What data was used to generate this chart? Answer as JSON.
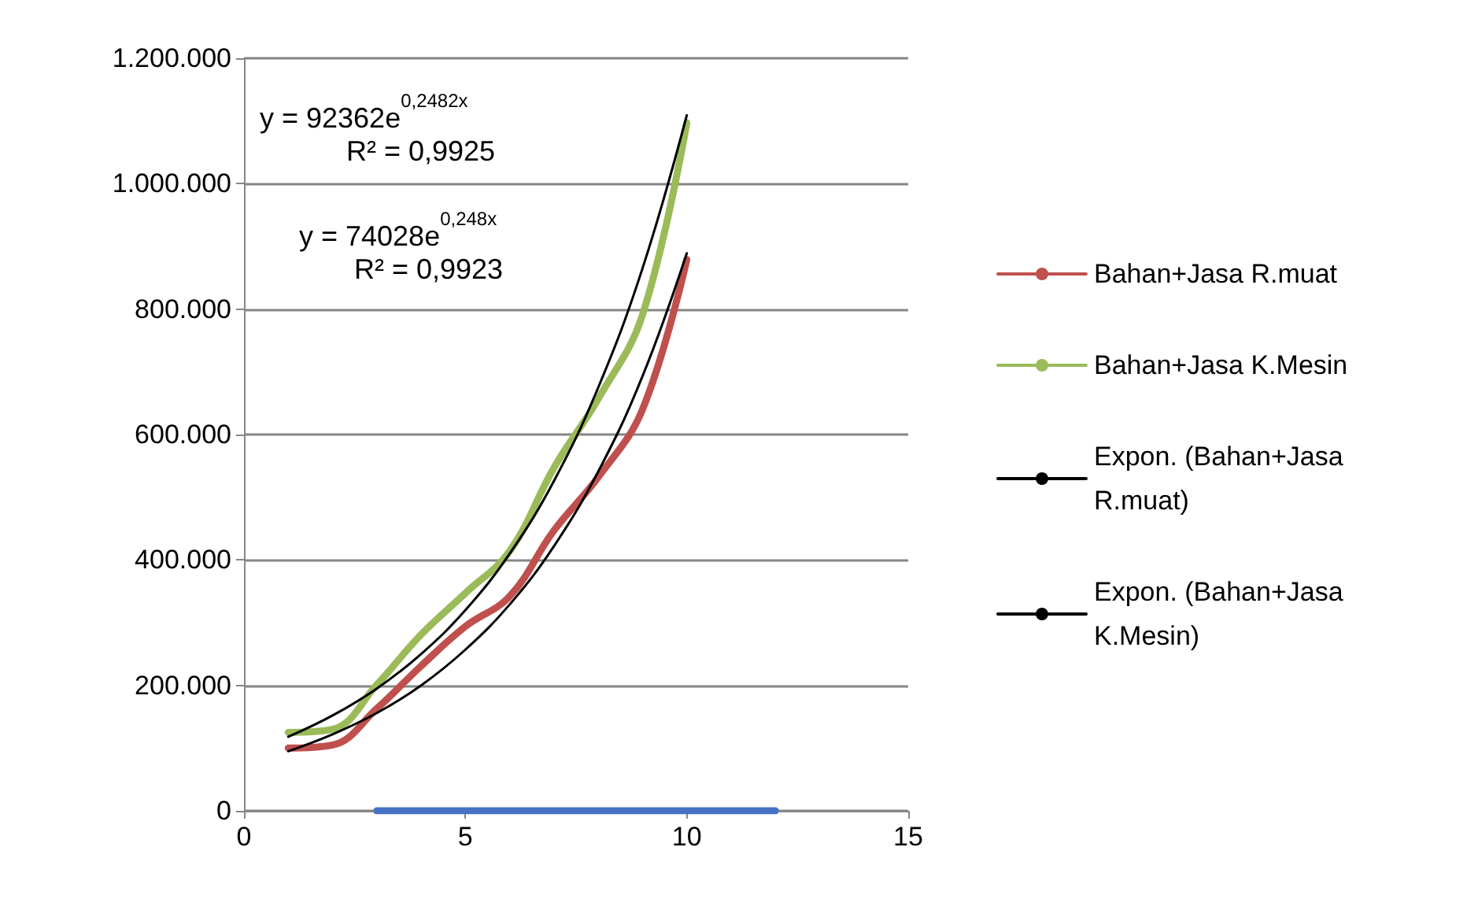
{
  "chart_data": {
    "type": "line",
    "marker": "none",
    "grid": "y",
    "legend": "right",
    "x": [
      1,
      2,
      3,
      4,
      5,
      6,
      7,
      8,
      9,
      10
    ],
    "xlim": [
      0,
      15
    ],
    "xticks": [
      0,
      5,
      10,
      15
    ],
    "ylim": [
      0,
      1200000
    ],
    "yticks": [
      {
        "value": 0,
        "label": "0"
      },
      {
        "value": 200000,
        "label": "200.000"
      },
      {
        "value": 400000,
        "label": "400.000"
      },
      {
        "value": 600000,
        "label": "600.000"
      },
      {
        "value": 800000,
        "label": "800.000"
      },
      {
        "value": 1000000,
        "label": "1.000.000"
      },
      {
        "value": 1200000,
        "label": "1.200.000"
      }
    ],
    "series": [
      {
        "name": "Bahan+Jasa R.muat",
        "color": "#c0504d",
        "values": [
          100000,
          105000,
          163000,
          231000,
          294000,
          342000,
          447000,
          532000,
          640000,
          879000
        ]
      },
      {
        "name": "Bahan+Jasa K.Mesin",
        "color": "#9bbb59",
        "values": [
          125000,
          130000,
          201000,
          281000,
          347000,
          414000,
          547000,
          657000,
          791000,
          1097000
        ]
      },
      {
        "name": "Expon. (Bahan+Jasa R.muat)",
        "color": "#000000",
        "values": [
          95000,
          122000,
          156000,
          200000,
          257000,
          329000,
          422000,
          541000,
          693000,
          889000
        ]
      },
      {
        "name": "Expon. (Bahan+Jasa K.Mesin)",
        "color": "#000000",
        "values": [
          118000,
          152000,
          195000,
          250000,
          320000,
          410000,
          526000,
          675000,
          865000,
          1109000
        ]
      },
      {
        "color": "#4472c4",
        "x": [
          3,
          12
        ],
        "values": [
          0,
          0
        ]
      }
    ],
    "annotations": [
      "y = 92362e$^{0,2482x}$",
      "R² = 0,9925",
      "y = 74028e$^{0,248x}$",
      "R² = 0,9923"
    ]
  }
}
